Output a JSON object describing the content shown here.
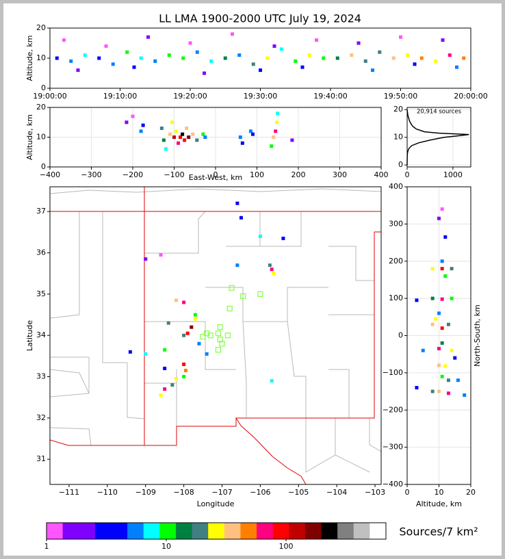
{
  "chart_data": [
    {
      "type": "scatter",
      "title": "LL LMA 1900-2000 UTC July 19, 2024",
      "ylabel": "Altitude, km",
      "x": [
        1,
        3,
        5,
        7,
        9,
        11,
        13,
        15,
        17,
        19,
        21,
        23,
        25,
        27,
        29,
        31,
        33,
        35,
        37,
        39,
        41,
        43,
        45,
        47,
        49,
        51,
        53,
        55,
        57,
        59,
        2,
        8,
        14,
        20,
        26,
        32,
        38,
        44,
        50,
        56,
        4,
        12,
        22,
        30,
        36,
        46,
        52,
        58
      ],
      "y": [
        10,
        9,
        11,
        10,
        8,
        12,
        10,
        9,
        11,
        10,
        12,
        9,
        10,
        11,
        8,
        10,
        13,
        9,
        11,
        10,
        10,
        11,
        9,
        12,
        10,
        11,
        10,
        9,
        11,
        10,
        16,
        14,
        17,
        15,
        18,
        14,
        16,
        15,
        17,
        16,
        6,
        7,
        5,
        6,
        7,
        6,
        8,
        7
      ],
      "density": [
        3,
        5,
        8,
        4,
        6,
        10,
        7,
        5,
        9,
        12,
        6,
        8,
        15,
        5,
        20,
        30,
        8,
        12,
        25,
        10,
        14,
        40,
        18,
        22,
        35,
        28,
        45,
        30,
        60,
        50,
        1,
        1,
        2,
        1,
        1,
        2,
        1,
        2,
        1,
        2,
        2,
        3,
        2,
        4,
        3,
        5,
        4,
        6
      ],
      "xlim": [
        0,
        60
      ],
      "xticks": [
        {
          "value": 0,
          "label": "19:00:00"
        },
        {
          "value": 10,
          "label": "19:10:00"
        },
        {
          "value": 20,
          "label": "19:20:00"
        },
        {
          "value": 30,
          "label": "19:30:00"
        },
        {
          "value": 40,
          "label": "19:40:00"
        },
        {
          "value": 50,
          "label": "19:50:00"
        },
        {
          "value": 60,
          "label": "20:00:00"
        }
      ],
      "ylim": [
        0,
        20
      ],
      "yticks": [
        0,
        10,
        20
      ],
      "grid": false
    },
    {
      "type": "scatter",
      "xlabel": "East-West, km",
      "ylabel": "Altitude, km",
      "x": [
        -215,
        -200,
        -180,
        -175,
        -130,
        -125,
        -120,
        -110,
        -105,
        -100,
        -95,
        -90,
        -85,
        -80,
        -75,
        -70,
        -65,
        -55,
        -45,
        -30,
        -25,
        60,
        65,
        85,
        90,
        135,
        140,
        145,
        148,
        150,
        185
      ],
      "y": [
        15,
        17,
        12,
        14,
        13,
        9,
        6,
        11,
        15,
        10,
        12,
        8,
        10,
        11,
        9,
        13,
        10,
        11,
        9,
        11,
        10,
        10,
        8,
        12,
        11,
        7,
        10,
        12,
        15,
        18,
        9
      ],
      "density": [
        2,
        1,
        5,
        3,
        20,
        15,
        8,
        40,
        25,
        120,
        30,
        60,
        100,
        200,
        80,
        35,
        150,
        40,
        20,
        10,
        6,
        5,
        3,
        6,
        4,
        10,
        40,
        60,
        25,
        8,
        2
      ],
      "xlim": [
        -400,
        400
      ],
      "xticks": [
        {
          "value": -400,
          "label": "−400"
        },
        {
          "value": -300,
          "label": "−300"
        },
        {
          "value": -200,
          "label": "−200"
        },
        {
          "value": -100,
          "label": "−100"
        },
        0,
        100,
        200,
        300,
        400
      ],
      "ylim": [
        0,
        20
      ],
      "yticks": [
        0,
        10,
        20
      ],
      "grid": true
    },
    {
      "type": "line",
      "annotation": "20,914 sources",
      "color": "#000000",
      "x": [
        0,
        15,
        50,
        80,
        120,
        200,
        380,
        700,
        1350,
        1100,
        800,
        500,
        250,
        100,
        40,
        15,
        5,
        1,
        0
      ],
      "y": [
        20,
        18,
        16,
        15,
        14,
        13,
        12,
        11.5,
        11,
        10.5,
        10,
        9,
        8,
        7,
        6,
        5,
        4,
        2,
        0
      ],
      "xlim": [
        0,
        1390
      ],
      "xticks": [
        0,
        1000
      ],
      "ylim": [
        -0.7,
        20.8
      ],
      "yticks": [
        0,
        10,
        20
      ],
      "grid": true
    },
    {
      "type": "map",
      "xlabel": "Longitude",
      "ylabel": "Latitude",
      "x": [
        -108.2,
        -108.0,
        -108.4,
        -107.8,
        -107.9,
        -107.7,
        -108.0,
        -107.95,
        -108.2,
        -108.5,
        -108.6,
        -108.3,
        -108.0,
        -109.0,
        -109.4,
        -108.5,
        -108.5,
        -107.6,
        -107.4,
        -105.7,
        -105.65,
        -105.75,
        -106.0,
        -106.5,
        -106.6,
        -106.6,
        -105.4,
        -109.0,
        -108.6,
        -105.7,
        -107.7,
        -108.0
      ],
      "y": [
        34.85,
        34.8,
        34.3,
        34.2,
        34.05,
        34.4,
        33.3,
        33.15,
        32.95,
        32.7,
        32.55,
        32.8,
        33.0,
        33.55,
        33.6,
        33.65,
        33.2,
        33.8,
        33.55,
        35.6,
        35.5,
        35.7,
        36.4,
        36.85,
        37.2,
        35.7,
        36.35,
        35.85,
        35.95,
        32.9,
        34.5,
        34.0
      ],
      "density": [
        40,
        60,
        20,
        150,
        80,
        30,
        100,
        50,
        30,
        60,
        25,
        20,
        10,
        8,
        4,
        12,
        3,
        6,
        5,
        60,
        30,
        20,
        8,
        4,
        3,
        5,
        3,
        2,
        1,
        8,
        10,
        20
      ],
      "stations": {
        "color": "#80ff40",
        "x": [
          -106.75,
          -106.45,
          -106.0,
          -106.8,
          -107.4,
          -107.3,
          -107.05,
          -107.1,
          -107.05,
          -107.0,
          -107.1,
          -106.85,
          -107.5
        ],
        "y": [
          35.15,
          34.95,
          35.0,
          34.65,
          34.05,
          34.0,
          34.2,
          34.05,
          33.9,
          33.8,
          33.65,
          34.0,
          33.97
        ]
      },
      "xlim": [
        -111.5,
        -102.84
      ],
      "xticks": [
        {
          "value": -111,
          "label": "−111"
        },
        {
          "value": -110,
          "label": "−110"
        },
        {
          "value": -109,
          "label": "−109"
        },
        {
          "value": -108,
          "label": "−108"
        },
        {
          "value": -107,
          "label": "−107"
        },
        {
          "value": -106,
          "label": "−106"
        },
        {
          "value": -105,
          "label": "−105"
        },
        {
          "value": -104,
          "label": "−104"
        },
        {
          "value": -103,
          "label": "−103"
        }
      ],
      "ylim": [
        30.39,
        37.6
      ],
      "yticks": [
        31,
        32,
        33,
        34,
        35,
        36,
        37
      ],
      "grid": false
    },
    {
      "type": "scatter",
      "xlabel": "Altitude, km",
      "ylabel": "North-South, km",
      "ylabel_side": "right",
      "x": [
        11,
        10,
        12,
        8,
        11,
        14,
        12,
        8,
        11,
        14,
        3,
        10,
        8,
        11,
        9,
        13,
        11,
        10,
        14,
        5,
        10,
        12,
        11,
        13,
        16,
        10,
        13,
        8,
        18,
        3,
        15,
        11
      ],
      "y": [
        340,
        315,
        265,
        180,
        180,
        180,
        160,
        100,
        98,
        100,
        95,
        60,
        30,
        20,
        45,
        30,
        -20,
        -35,
        -40,
        -40,
        -80,
        -82,
        -110,
        -120,
        -120,
        -150,
        -155,
        -150,
        -160,
        -140,
        -60,
        200
      ],
      "density": [
        1,
        2,
        3,
        30,
        100,
        20,
        10,
        15,
        60,
        10,
        3,
        5,
        40,
        80,
        30,
        20,
        15,
        60,
        25,
        5,
        40,
        25,
        10,
        20,
        5,
        40,
        60,
        20,
        5,
        3,
        3,
        5
      ],
      "xlim": [
        0,
        20
      ],
      "xticks": [
        0,
        10,
        20
      ],
      "ylim": [
        -400,
        400
      ],
      "yticks": [
        {
          "value": -400,
          "label": "−400"
        },
        {
          "value": -300,
          "label": "−300"
        },
        {
          "value": -200,
          "label": "−200"
        },
        {
          "value": -100,
          "label": "−100"
        },
        0,
        100,
        200,
        300,
        400
      ],
      "grid": true
    },
    {
      "type": "colorbar",
      "label": "Sources/7 km²",
      "scale": "log",
      "clim": [
        1,
        683
      ],
      "ticks": [
        1,
        10,
        100
      ],
      "colors": [
        "#ff55ff",
        "#8000ff",
        "#8000ff",
        "#0000ff",
        "#0000ff",
        "#0080ff",
        "#00ffff",
        "#00ff00",
        "#008040",
        "#408080",
        "#ffff00",
        "#ffc080",
        "#ff8000",
        "#ff0080",
        "#ff0000",
        "#c00000",
        "#800000",
        "#000000",
        "#808080",
        "#c0c0c0",
        "#ffffff"
      ]
    }
  ]
}
